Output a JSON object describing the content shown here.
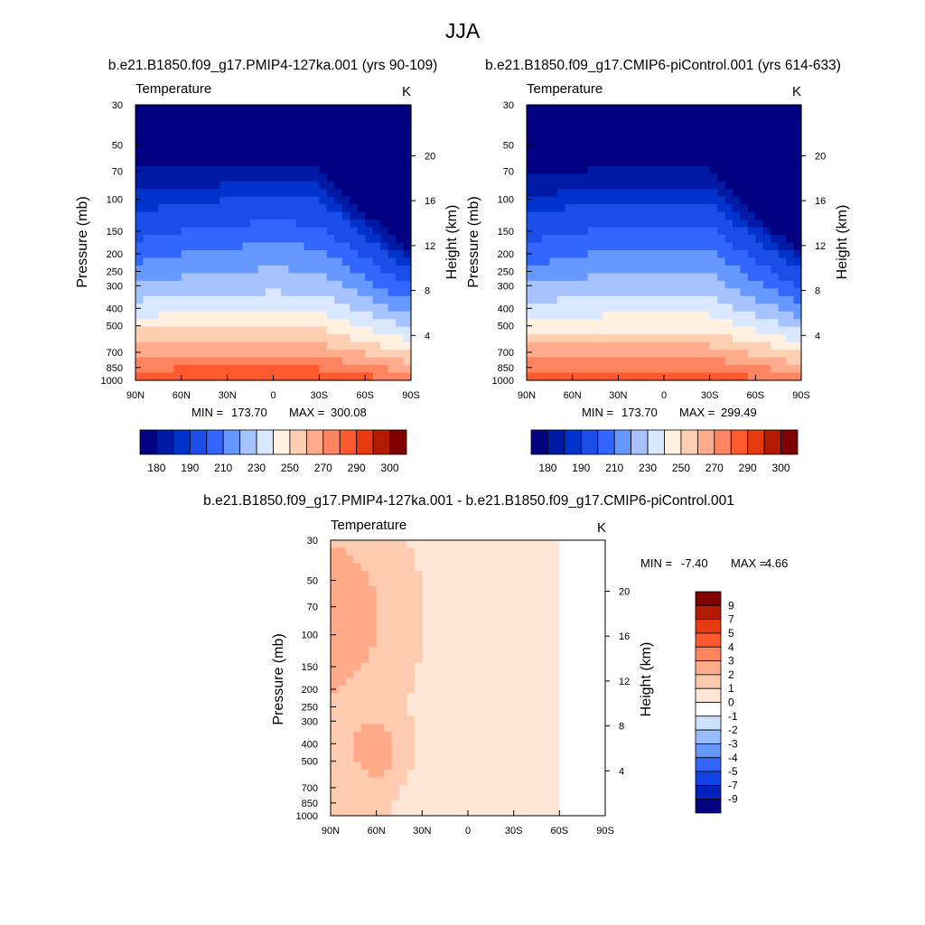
{
  "figure": {
    "title": "JJA",
    "colors": {
      "ink": "#000000",
      "background": "#ffffff"
    }
  },
  "palettes": {
    "absolute": [
      "#000080",
      "#001aa6",
      "#0033cc",
      "#1a4ee6",
      "#3366ff",
      "#6699ff",
      "#a6c2ff",
      "#d9e8ff",
      "#fff0e0",
      "#ffcfb3",
      "#ffab8c",
      "#ff8561",
      "#ff5a2e",
      "#e63a10",
      "#b31a00",
      "#800000"
    ],
    "difference": [
      "#000080",
      "#0022bb",
      "#1144e6",
      "#3366ff",
      "#6699ff",
      "#99bbff",
      "#cce0ff",
      "#ffffff",
      "#ffe6d5",
      "#ffcbb0",
      "#ffaa88",
      "#ff8561",
      "#ff5a2e",
      "#e63a10",
      "#b31a00",
      "#800000"
    ]
  },
  "chart_data": [
    {
      "id": "top-left",
      "type": "contour",
      "title": "b.e21.B1850.f09_g17.PMIP4-127ka.001 (yrs 90-109)",
      "field_label": "Temperature",
      "units": "K",
      "ylabel": "Pressure (mb)",
      "y2label": "Height (km)",
      "x_ticks": [
        "90N",
        "60N",
        "30N",
        "0",
        "30S",
        "60S",
        "90S"
      ],
      "x_values": [
        90,
        60,
        30,
        0,
        -30,
        -60,
        -90
      ],
      "p_ticks": [
        30,
        50,
        70,
        100,
        150,
        200,
        250,
        300,
        400,
        500,
        700,
        850,
        1000
      ],
      "z_ticks": [
        4,
        8,
        12,
        16,
        20
      ],
      "min": "173.70",
      "max": "300.08",
      "min_label": "MIN =",
      "max_label": "MAX =",
      "levels": [
        180,
        185,
        190,
        200,
        210,
        220,
        230,
        240,
        250,
        260,
        270,
        280,
        290,
        295,
        300
      ],
      "colorbar_labels": [
        "180",
        "190",
        "210",
        "230",
        "250",
        "270",
        "290",
        "300"
      ],
      "scale": 1.0
    },
    {
      "id": "top-right",
      "type": "contour",
      "title": "b.e21.B1850.f09_g17.CMIP6-piControl.001 (yrs 614-633)",
      "field_label": "Temperature",
      "units": "K",
      "ylabel": "Pressure (mb)",
      "y2label": "Height (km)",
      "x_ticks": [
        "90N",
        "60N",
        "30N",
        "0",
        "30S",
        "60S",
        "90S"
      ],
      "x_values": [
        90,
        60,
        30,
        0,
        -30,
        -60,
        -90
      ],
      "p_ticks": [
        30,
        50,
        70,
        100,
        150,
        200,
        250,
        300,
        400,
        500,
        700,
        850,
        1000
      ],
      "z_ticks": [
        4,
        8,
        12,
        16,
        20
      ],
      "min": "173.70",
      "max": "299.49",
      "min_label": "MIN =",
      "max_label": "MAX =",
      "levels": [
        180,
        185,
        190,
        200,
        210,
        220,
        230,
        240,
        250,
        260,
        270,
        280,
        290,
        295,
        300
      ],
      "colorbar_labels": [
        "180",
        "190",
        "210",
        "230",
        "250",
        "270",
        "290",
        "300"
      ],
      "scale": 0.995
    },
    {
      "id": "difference",
      "type": "contour",
      "title": "b.e21.B1850.f09_g17.PMIP4-127ka.001 - b.e21.B1850.f09_g17.CMIP6-piControl.001",
      "field_label": "Temperature",
      "units": "K",
      "ylabel": "Pressure (mb)",
      "y2label": "Height (km)",
      "x_ticks": [
        "90N",
        "60N",
        "30N",
        "0",
        "30S",
        "60S",
        "90S"
      ],
      "x_values": [
        90,
        60,
        30,
        0,
        -30,
        -60,
        -90
      ],
      "p_ticks": [
        30,
        50,
        70,
        100,
        150,
        200,
        250,
        300,
        400,
        500,
        700,
        850,
        1000
      ],
      "z_ticks": [
        4,
        8,
        12,
        16,
        20
      ],
      "min": "-7.40",
      "max": "4.66",
      "min_label": "MIN =",
      "max_label": "MAX =",
      "levels": [
        -9,
        -7,
        -5,
        -4,
        -3,
        -2,
        -1,
        0,
        1,
        2,
        3,
        4,
        5,
        7,
        9
      ],
      "colorbar_labels": [
        "9",
        "7",
        "5",
        "4",
        "3",
        "2",
        "1",
        "0",
        "-1",
        "-2",
        "-3",
        "-4",
        "-5",
        "-7",
        "-9"
      ]
    }
  ]
}
